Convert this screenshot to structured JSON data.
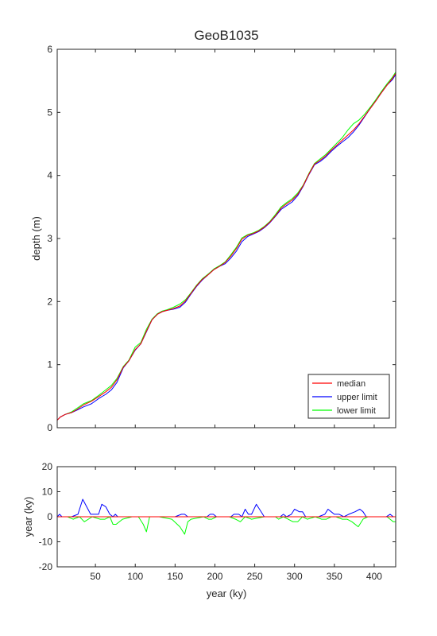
{
  "chart_data": [
    {
      "type": "line",
      "title": "GeoB1035",
      "xlabel": "",
      "ylabel": "depth (m)",
      "xlim": [
        2,
        427
      ],
      "ylim": [
        0,
        6
      ],
      "yticks": [
        "0",
        "1",
        "2",
        "3",
        "4",
        "5",
        "6"
      ],
      "legend_position": "bottom-right",
      "grid": false,
      "series": [
        {
          "name": "median",
          "color": "#ff0000",
          "x": [
            2,
            6,
            12,
            20,
            27,
            35,
            45,
            55,
            63,
            70,
            77,
            85,
            92,
            100,
            107,
            114,
            121,
            128,
            134,
            140,
            148,
            156,
            163,
            170,
            177,
            184,
            192,
            199,
            206,
            213,
            220,
            227,
            234,
            241,
            248,
            255,
            262,
            269,
            276,
            283,
            290,
            297,
            304,
            311,
            318,
            325,
            332,
            339,
            346,
            353,
            360,
            367,
            374,
            381,
            388,
            395,
            402,
            409,
            416,
            423,
            427
          ],
          "y": [
            0.12,
            0.17,
            0.21,
            0.24,
            0.29,
            0.36,
            0.42,
            0.5,
            0.57,
            0.64,
            0.76,
            0.96,
            1.06,
            1.24,
            1.33,
            1.53,
            1.71,
            1.8,
            1.84,
            1.86,
            1.89,
            1.93,
            2.01,
            2.13,
            2.25,
            2.35,
            2.43,
            2.51,
            2.56,
            2.62,
            2.72,
            2.84,
            2.99,
            3.05,
            3.08,
            3.12,
            3.18,
            3.26,
            3.36,
            3.48,
            3.55,
            3.61,
            3.7,
            3.84,
            4.02,
            4.18,
            4.24,
            4.31,
            4.4,
            4.48,
            4.56,
            4.64,
            4.72,
            4.82,
            4.94,
            5.06,
            5.18,
            5.31,
            5.43,
            5.54,
            5.62
          ]
        },
        {
          "name": "upper limit",
          "color": "#0000ff",
          "x": [
            2,
            6,
            12,
            20,
            27,
            35,
            45,
            55,
            63,
            70,
            77,
            85,
            92,
            100,
            107,
            114,
            121,
            128,
            134,
            140,
            148,
            156,
            163,
            170,
            177,
            184,
            192,
            199,
            206,
            213,
            220,
            227,
            234,
            241,
            248,
            255,
            262,
            269,
            276,
            283,
            290,
            297,
            304,
            311,
            318,
            325,
            332,
            339,
            346,
            353,
            360,
            367,
            374,
            381,
            388,
            395,
            402,
            409,
            416,
            423,
            427
          ],
          "y": [
            0.12,
            0.17,
            0.21,
            0.24,
            0.28,
            0.33,
            0.38,
            0.47,
            0.53,
            0.6,
            0.72,
            0.95,
            1.06,
            1.23,
            1.33,
            1.52,
            1.71,
            1.8,
            1.84,
            1.86,
            1.88,
            1.91,
            1.99,
            2.12,
            2.24,
            2.34,
            2.43,
            2.51,
            2.56,
            2.6,
            2.69,
            2.8,
            2.95,
            3.03,
            3.07,
            3.11,
            3.17,
            3.25,
            3.35,
            3.46,
            3.52,
            3.58,
            3.68,
            3.83,
            4.01,
            4.17,
            4.22,
            4.29,
            4.38,
            4.46,
            4.53,
            4.6,
            4.69,
            4.8,
            4.93,
            5.06,
            5.18,
            5.31,
            5.43,
            5.52,
            5.6
          ]
        },
        {
          "name": "lower limit",
          "color": "#00ff00",
          "x": [
            2,
            6,
            12,
            20,
            27,
            35,
            45,
            55,
            63,
            70,
            77,
            85,
            92,
            100,
            107,
            114,
            121,
            128,
            134,
            140,
            148,
            156,
            163,
            170,
            177,
            184,
            192,
            199,
            206,
            213,
            220,
            227,
            234,
            241,
            248,
            255,
            262,
            269,
            276,
            283,
            290,
            297,
            304,
            311,
            318,
            325,
            332,
            339,
            346,
            353,
            360,
            367,
            374,
            381,
            388,
            395,
            402,
            409,
            416,
            423,
            427
          ],
          "y": [
            0.12,
            0.17,
            0.21,
            0.25,
            0.31,
            0.38,
            0.43,
            0.52,
            0.6,
            0.67,
            0.78,
            0.97,
            1.07,
            1.28,
            1.35,
            1.56,
            1.72,
            1.81,
            1.85,
            1.87,
            1.91,
            1.96,
            2.03,
            2.14,
            2.26,
            2.36,
            2.44,
            2.52,
            2.57,
            2.63,
            2.74,
            2.86,
            3.01,
            3.06,
            3.09,
            3.13,
            3.19,
            3.27,
            3.38,
            3.5,
            3.57,
            3.63,
            3.72,
            3.85,
            4.03,
            4.19,
            4.26,
            4.33,
            4.42,
            4.51,
            4.6,
            4.72,
            4.82,
            4.88,
            4.97,
            5.08,
            5.2,
            5.33,
            5.45,
            5.56,
            5.64
          ]
        }
      ]
    },
    {
      "type": "line",
      "title": "",
      "xlabel": "year (ky)",
      "ylabel": "year (ky)",
      "xlim": [
        2,
        427
      ],
      "ylim": [
        -20,
        20
      ],
      "xticks": [
        "50",
        "100",
        "150",
        "200",
        "250",
        "300",
        "350",
        "400"
      ],
      "yticks": [
        "-20",
        "-10",
        "0",
        "10",
        "20"
      ],
      "grid": false,
      "series": [
        {
          "color": "#ff0000",
          "x": [
            2,
            427
          ],
          "y": [
            0,
            0
          ]
        },
        {
          "color": "#0000ff",
          "x": [
            2,
            5,
            8,
            20,
            28,
            34,
            44,
            54,
            58,
            63,
            68,
            72,
            75,
            78,
            90,
            150,
            158,
            162,
            166,
            190,
            194,
            198,
            202,
            220,
            224,
            230,
            234,
            238,
            242,
            246,
            252,
            256,
            262,
            270,
            282,
            286,
            290,
            296,
            300,
            306,
            310,
            314,
            330,
            338,
            342,
            346,
            350,
            356,
            362,
            368,
            376,
            382,
            386,
            390,
            415,
            420,
            424,
            427
          ],
          "y": [
            0,
            1,
            0,
            0,
            1,
            7,
            1,
            1,
            5,
            4,
            1,
            0,
            1,
            0,
            0,
            0,
            1,
            1,
            0,
            0,
            1,
            1,
            0,
            0,
            1,
            1,
            0,
            3,
            1,
            1,
            5,
            3,
            0,
            0,
            0,
            1,
            0,
            1,
            3,
            2,
            2,
            0,
            0,
            1,
            3,
            2,
            1,
            1,
            0,
            1,
            2,
            3,
            2,
            0,
            0,
            1,
            0,
            0
          ]
        },
        {
          "color": "#00ff00",
          "x": [
            2,
            15,
            22,
            30,
            36,
            46,
            56,
            62,
            68,
            72,
            76,
            84,
            96,
            104,
            110,
            114,
            118,
            130,
            146,
            156,
            162,
            166,
            170,
            186,
            192,
            196,
            202,
            218,
            226,
            232,
            238,
            246,
            262,
            276,
            280,
            286,
            292,
            298,
            304,
            310,
            316,
            326,
            334,
            340,
            346,
            352,
            360,
            366,
            372,
            380,
            386,
            392,
            416,
            420,
            424,
            427
          ],
          "y": [
            0,
            0,
            -1,
            0,
            -2,
            0,
            -1,
            -1,
            0,
            -3,
            -3,
            -1,
            0,
            0,
            -3,
            -6,
            0,
            0,
            -1,
            -4,
            -7,
            -2,
            -1,
            0,
            -1,
            -1,
            0,
            0,
            -1,
            -2,
            0,
            -1,
            0,
            0,
            -1,
            0,
            -1,
            -2,
            -2,
            0,
            -1,
            0,
            -1,
            -1,
            0,
            0,
            -1,
            -1,
            -2,
            -4,
            -1,
            0,
            0,
            -1,
            -2,
            -2
          ]
        }
      ]
    }
  ]
}
